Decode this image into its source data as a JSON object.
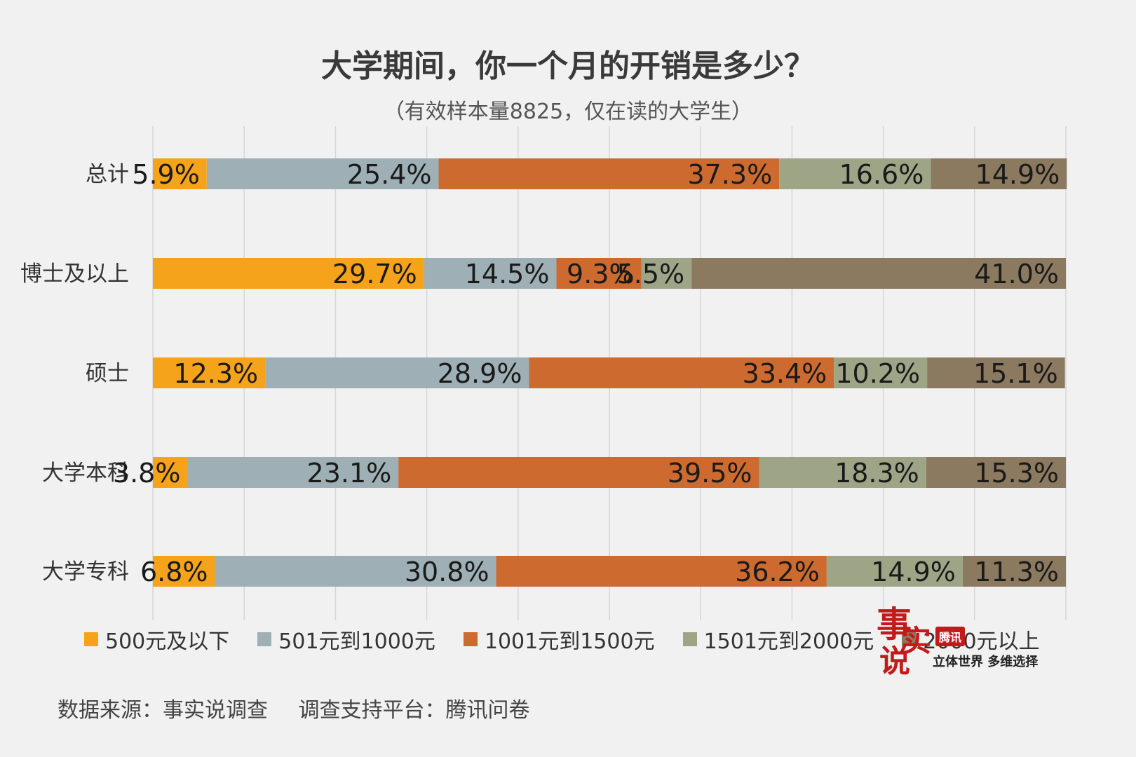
{
  "header": {
    "title": "大学期间，你一个月的开销是多少？",
    "subtitle": "（有效样本量8825，仅在读的大学生）"
  },
  "chart_data": {
    "type": "bar",
    "orientation": "horizontal",
    "stacked": true,
    "percent": true,
    "categories": [
      "总计",
      "博士及以上",
      "硕士",
      "大学本科",
      "大学专科"
    ],
    "series": [
      {
        "name": "500元及以下",
        "color": "#f5a31a",
        "values": [
          5.9,
          29.7,
          12.3,
          3.8,
          6.8
        ]
      },
      {
        "name": "501元到1000元",
        "color": "#9eb0b5",
        "values": [
          25.4,
          14.5,
          28.9,
          23.1,
          30.8
        ]
      },
      {
        "name": "1001元到1500元",
        "color": "#cc6a2f",
        "values": [
          37.3,
          9.3,
          33.4,
          39.5,
          36.2
        ]
      },
      {
        "name": "1501元到2000元",
        "color": "#9ea587",
        "values": [
          16.6,
          5.5,
          10.2,
          18.3,
          14.9
        ]
      },
      {
        "name": "2000元以上",
        "color": "#8b7a5f",
        "values": [
          14.9,
          41.0,
          15.1,
          15.3,
          11.3
        ]
      }
    ],
    "xlim": [
      0,
      100
    ],
    "grid": true,
    "legend_position": "bottom"
  },
  "footer": {
    "source": "数据来源：事实说调查",
    "platform": "调查支持平台：腾讯问卷"
  },
  "logo": {
    "char1": "事",
    "char2": "实",
    "char3": "说",
    "badge": "腾讯",
    "slogan": "立体世界 多维选择"
  }
}
